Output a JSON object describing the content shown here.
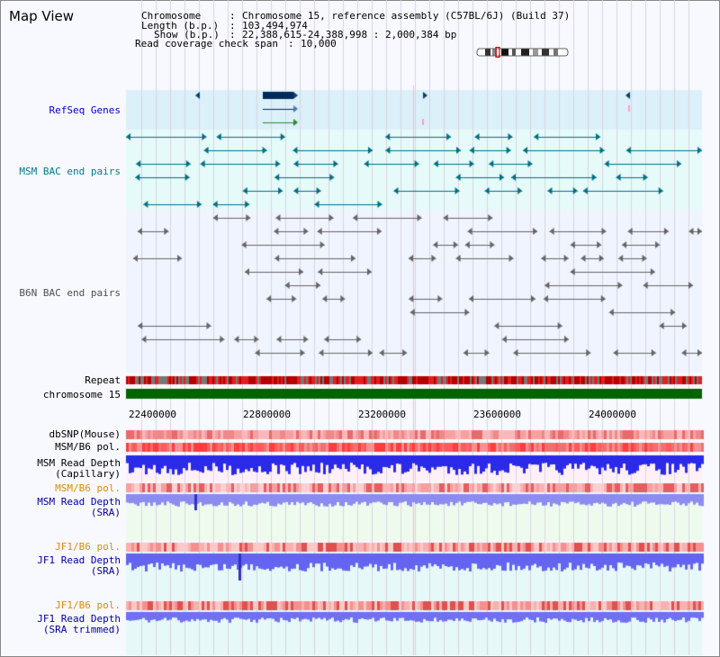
{
  "page": {
    "title": "Map View"
  },
  "info": {
    "chromosome_label": "Chromosome",
    "chromosome_value": "Chromosome 15, reference assembly (C57BL/6J) (Build 37)",
    "length_label": "Length (b.p.)",
    "length_value": "103,494,974",
    "show_label": "Show (b.p.)",
    "show_value": "22,388,615-24,388,998 : 2,000,384 bp",
    "span_label": "Read coverage check span",
    "span_value": "10,000"
  },
  "tracks": {
    "refseq": "RefSeq Genes",
    "msm_bac": "MSM BAC end pairs",
    "b6n_bac": "B6N BAC end pairs",
    "repeat": "Repeat",
    "chromosome": "chromosome 15",
    "dbsnp": "dbSNP(Mouse)",
    "msm_b6_pol_a": "MSM/B6 pol.",
    "msm_depth_cap_1": "MSM Read Depth",
    "msm_depth_cap_2": "(Capillary)",
    "msm_b6_pol_b": "MSM/B6 pol.",
    "msm_depth_sra_1": "MSM Read Depth",
    "msm_depth_sra_2": "(SRA)",
    "jf1_b6_pol_a": "JF1/B6 pol.",
    "jf1_depth_sra_1": "JF1 Read Depth",
    "jf1_depth_sra_2": "(SRA)",
    "jf1_b6_pol_b": "JF1/B6 pol.",
    "jf1_depth_trim_1": "JF1 Read Depth",
    "jf1_depth_trim_2": "(SRA trimmed)"
  },
  "axis": {
    "ticks": [
      "22400000",
      "22800000",
      "23200000",
      "23600000",
      "24000000"
    ]
  },
  "colors": {
    "refseq_bg": "#dcf0fa",
    "msm_bg": "#e6fafa",
    "msm_feature": "#006e82",
    "b6n_feature": "#646464",
    "refseq_label": "#0000c8",
    "msm_label": "#007a8c",
    "b6n_label": "#505050",
    "pol_label": "#e08c00",
    "depth_label": "#0000a0",
    "chromosome_bar": "#006400"
  },
  "icons": {
    "ideogram": "chromosome-ideogram-icon"
  }
}
